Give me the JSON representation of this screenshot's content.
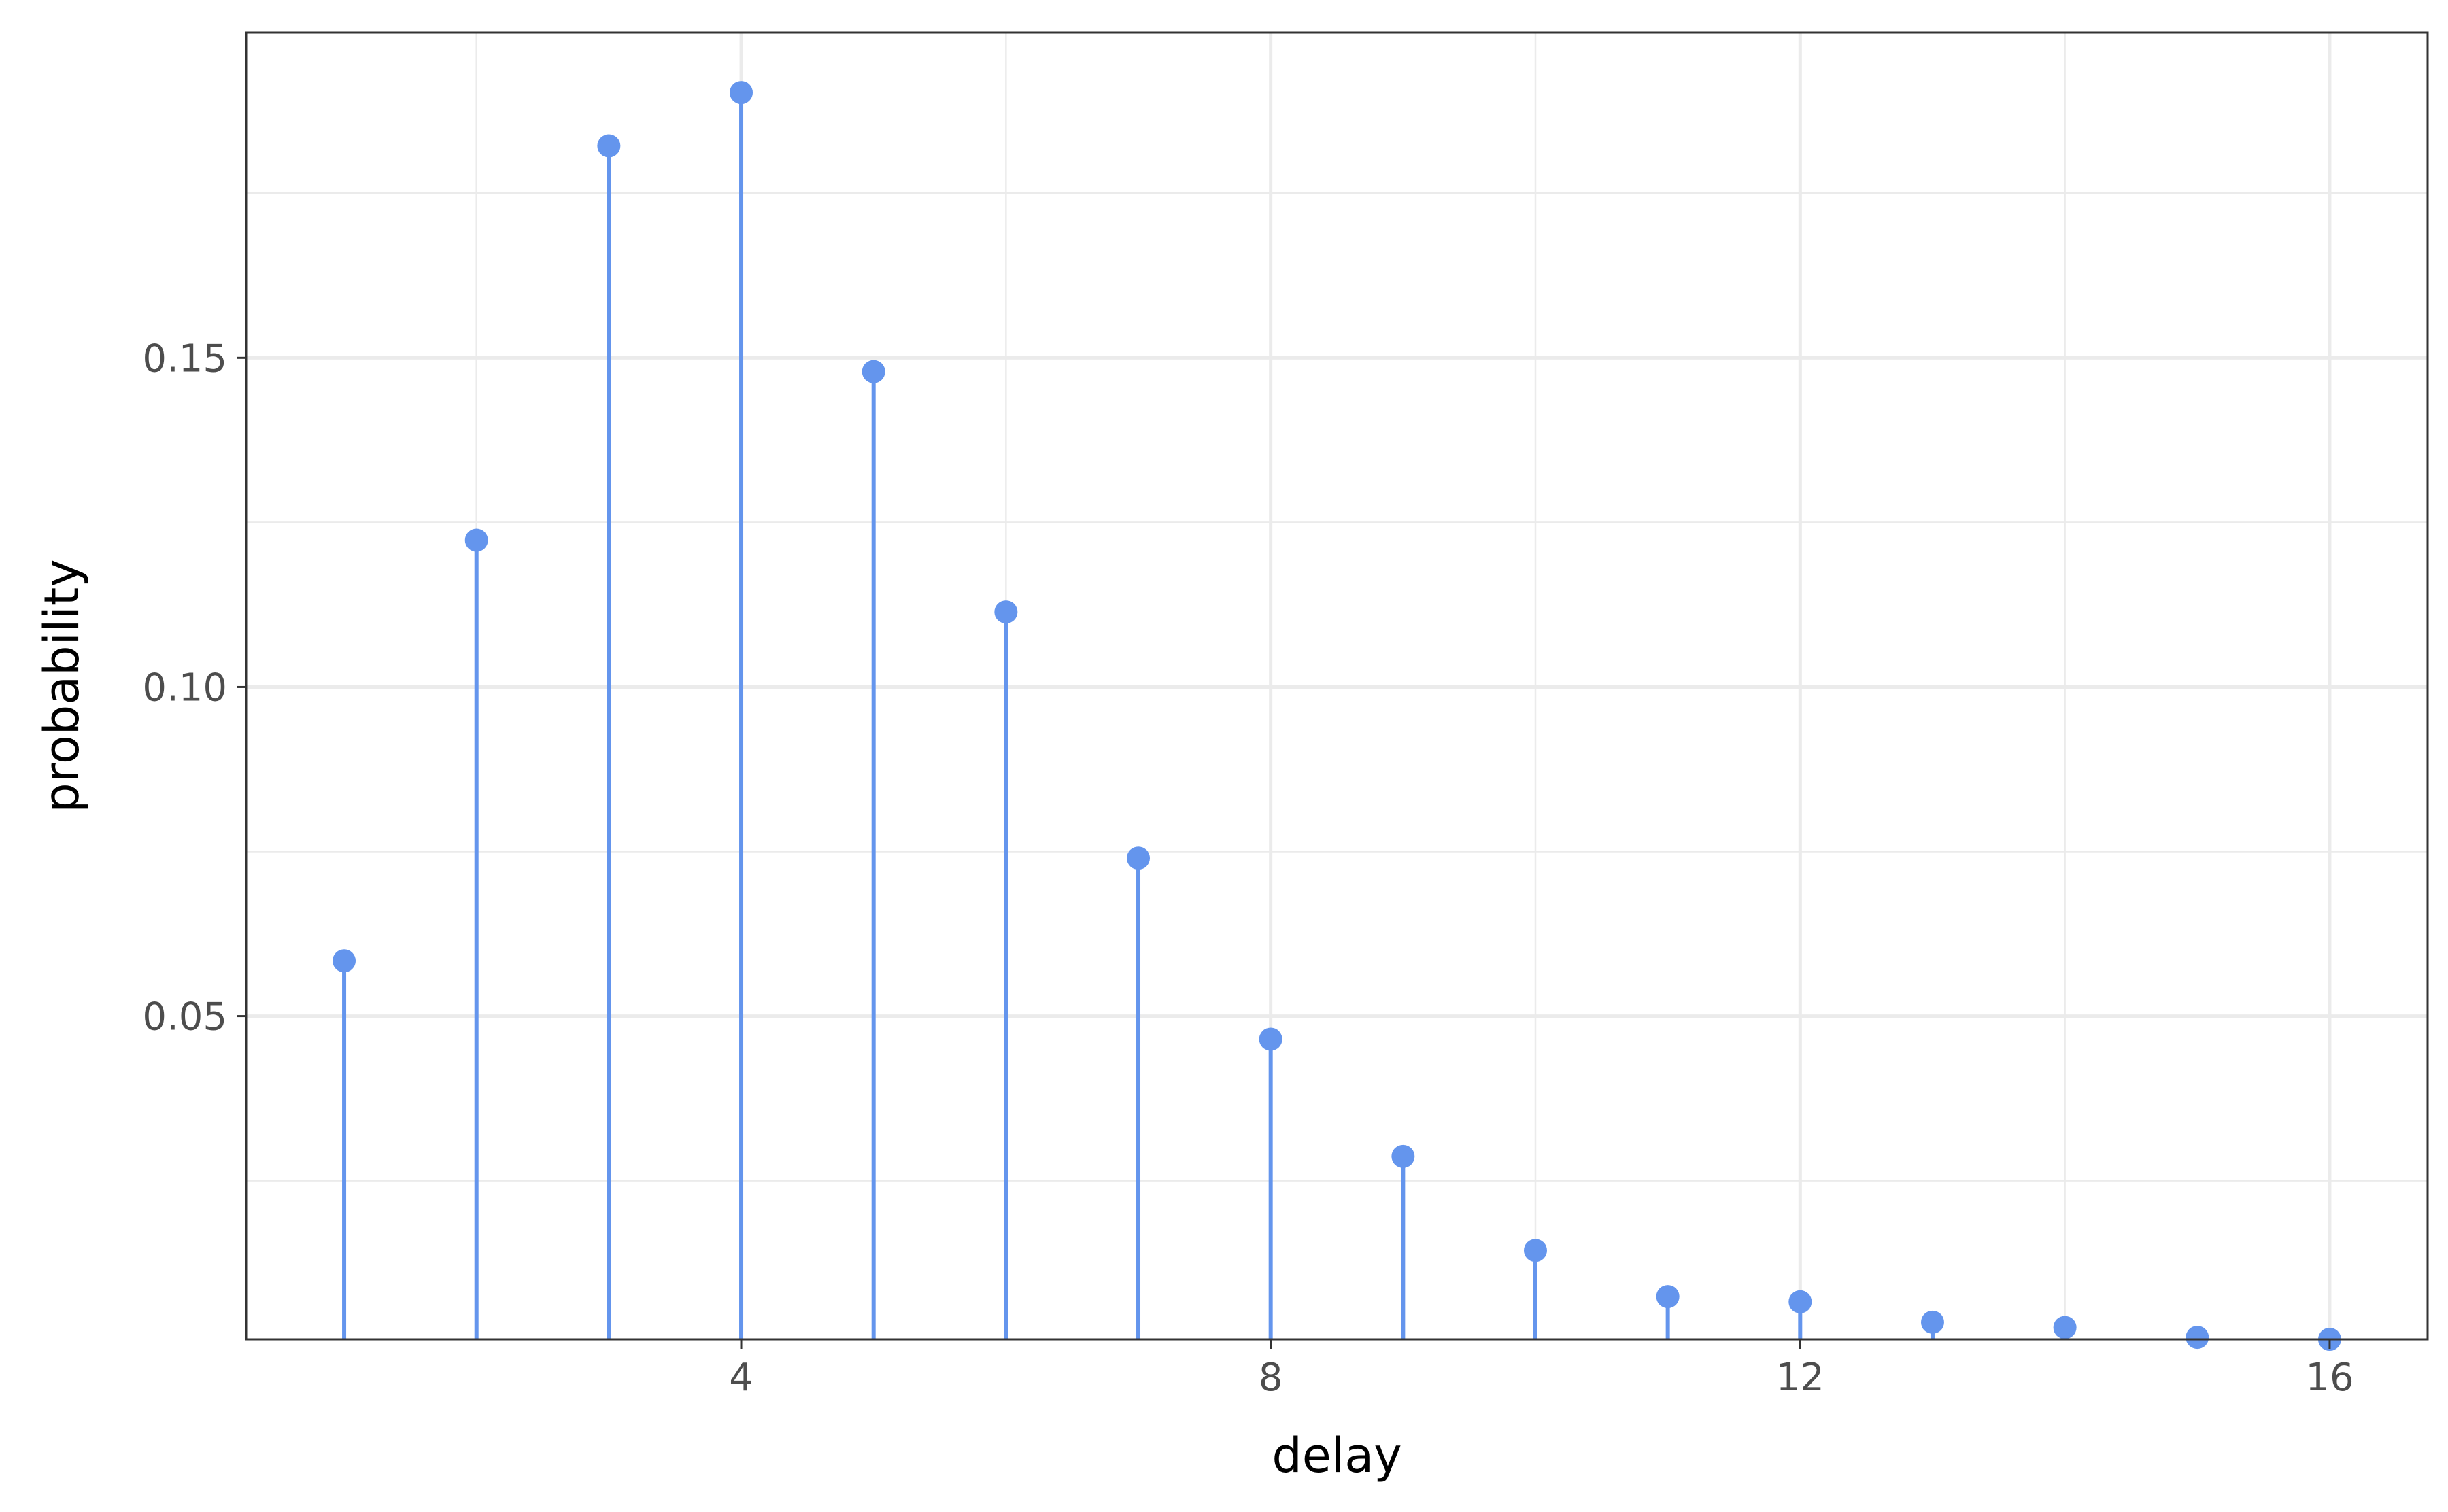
{
  "chart_data": {
    "type": "lollipop",
    "xlabel": "delay",
    "ylabel": "probability",
    "xlim": [
      0.26,
      16.74
    ],
    "ylim": [
      0.0009,
      0.1994
    ],
    "x_ticks": [
      4,
      8,
      12,
      16
    ],
    "x_tick_labels": [
      "4",
      "8",
      "12",
      "16"
    ],
    "x_minor_ticks": [
      2,
      6,
      10,
      14
    ],
    "y_ticks": [
      0.05,
      0.1,
      0.15
    ],
    "y_tick_labels": [
      "0.05",
      "0.10",
      "0.15"
    ],
    "y_minor_ticks": [
      0.025,
      0.075,
      0.125,
      0.175
    ],
    "grid": true,
    "series": [
      {
        "color": "#6495ED",
        "x": [
          1,
          2,
          3,
          4,
          5,
          6,
          7,
          8,
          9,
          10,
          11,
          12,
          13,
          14,
          15,
          16
        ],
        "y": [
          0.0584,
          0.1223,
          0.1822,
          0.1903,
          0.1479,
          0.1114,
          0.074,
          0.0465,
          0.0287,
          0.0144,
          0.0074,
          0.0066,
          0.0035,
          0.0027,
          0.0012,
          0.0009
        ]
      }
    ]
  }
}
